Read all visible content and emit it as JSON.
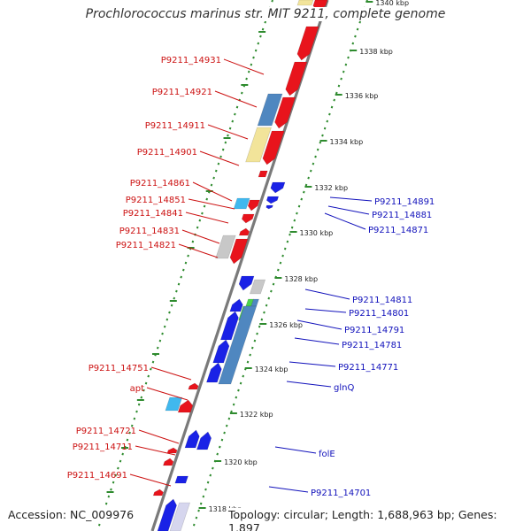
{
  "title": "Prochlorococcus marinus str. MIT 9211, complete genome",
  "footer": {
    "accession": "Accession: NC_009976",
    "stats": "Topology: circular; Length: 1,688,963 bp; Genes: 1,897"
  },
  "colors": {
    "backbone": "#7a7a7a",
    "reverse_strand": "#e8141c",
    "forward_strand": "#1a22e6",
    "tick_dots": "#2e8b2e",
    "label_reverse": "#cc1111",
    "label_forward": "#1111bb",
    "tick_label": "#222222",
    "gene_yellow": "#f2e49a",
    "gene_steelblue": "#4f87c0",
    "gene_lightblue": "#40b8ee",
    "gene_gray": "#c8c8c8",
    "gene_green": "#4cd24c"
  },
  "scale_ticks": [
    "1340 kbp",
    "1338 kbp",
    "1336 kbp",
    "1334 kbp",
    "1332 kbp",
    "1330 kbp",
    "1328 kbp",
    "1326 kbp",
    "1324 kbp",
    "1322 kbp",
    "1320 kbp",
    "1318 kbp"
  ],
  "labels_left": [
    "P9211_14931",
    "P9211_14921",
    "P9211_14911",
    "P9211_14901",
    "P9211_14861",
    "P9211_14851",
    "P9211_14841",
    "P9211_14831",
    "P9211_14821",
    "P9211_14751",
    "apt",
    "P9211_14721",
    "P9211_14711",
    "P9211_14691"
  ],
  "labels_right": [
    "P9211_14891",
    "P9211_14881",
    "P9211_14871",
    "P9211_14811",
    "P9211_14801",
    "P9211_14791",
    "P9211_14781",
    "P9211_14771",
    "glnQ",
    "folE",
    "P9211_14701"
  ]
}
